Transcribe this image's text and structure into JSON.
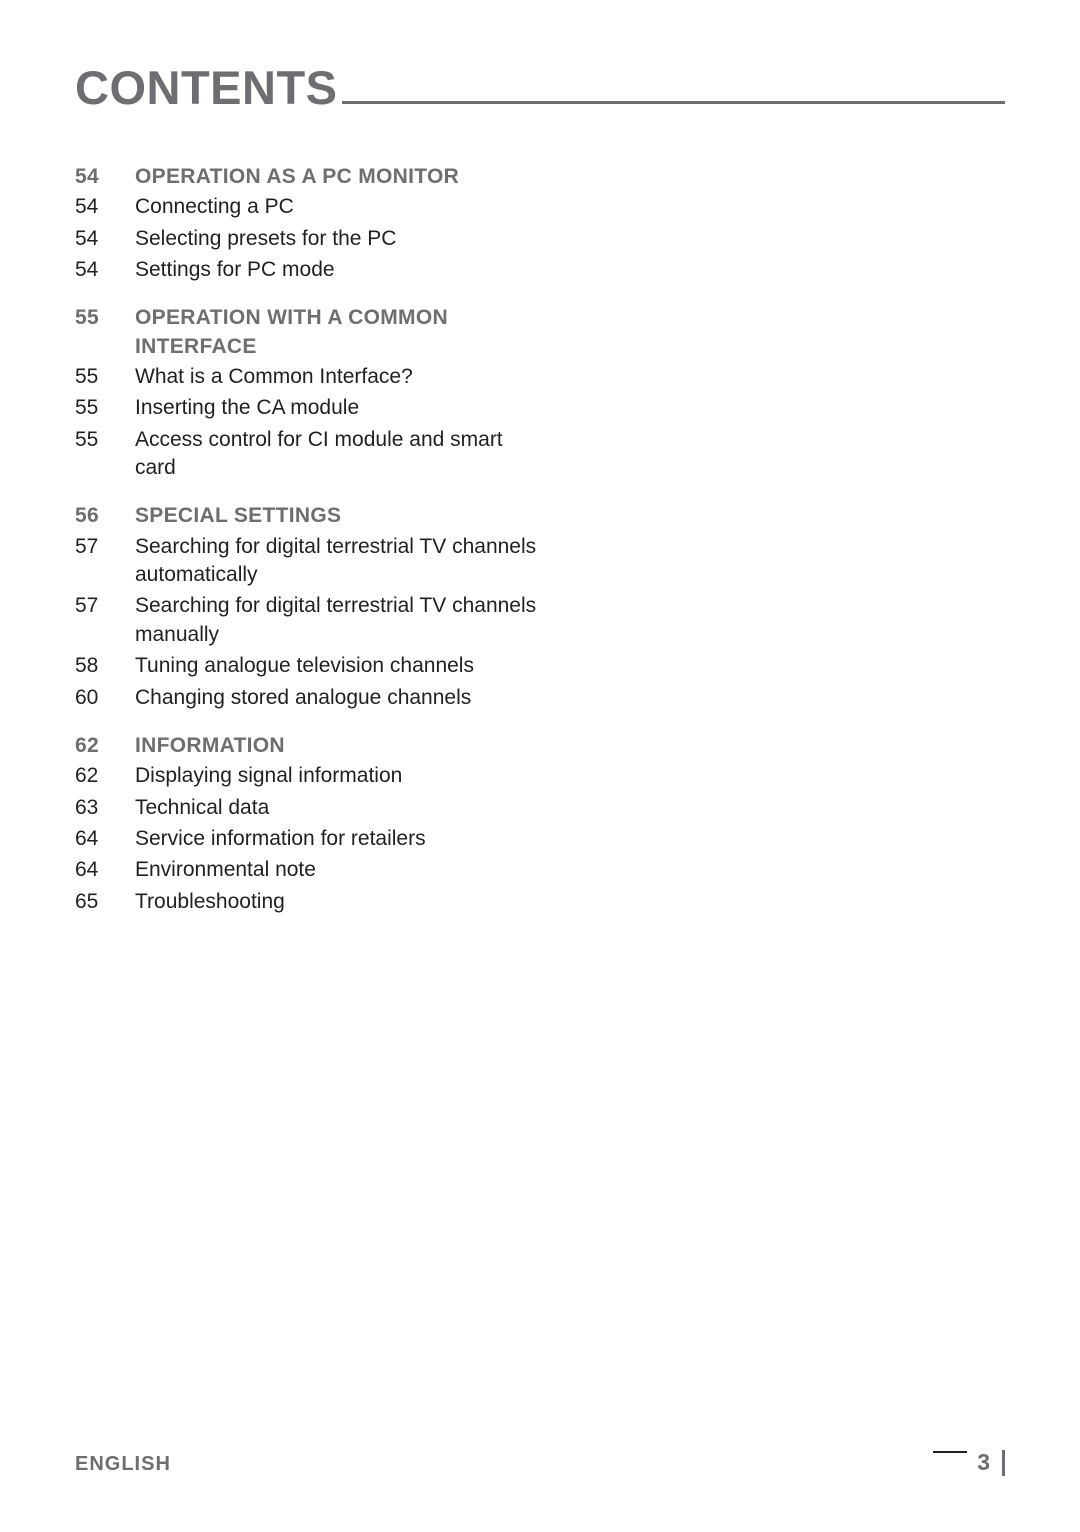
{
  "heading": "CONTENTS",
  "colors": {
    "heading": "#6d6e71",
    "section": "#6d6e71",
    "body": "#231f20",
    "rule": "#6d6e71",
    "background": "#ffffff"
  },
  "typography": {
    "heading_size_pt": 35,
    "body_size_pt": 16,
    "footer_size_pt": 15
  },
  "toc": {
    "sections": [
      {
        "page": "54",
        "title": "OPERATION AS A PC MONITOR",
        "items": [
          {
            "page": "54",
            "text": "Connecting a PC"
          },
          {
            "page": "54",
            "text": "Selecting presets for the PC"
          },
          {
            "page": "54",
            "text": "Settings for PC mode"
          }
        ]
      },
      {
        "page": "55",
        "title": "OPERATION WITH A COMMON INTERFACE",
        "items": [
          {
            "page": "55",
            "text": "What is a Common Interface?"
          },
          {
            "page": "55",
            "text": "Inserting the CA module"
          },
          {
            "page": "55",
            "text": "Access control for CI module and smart card"
          }
        ]
      },
      {
        "page": "56",
        "title": "SPECIAL SETTINGS",
        "items": [
          {
            "page": "57",
            "text": "Searching for digital terrestrial TV channels automatically"
          },
          {
            "page": "57",
            "text": "Searching for digital terrestrial TV channels manually"
          },
          {
            "page": "58",
            "text": "Tuning analogue television channels"
          },
          {
            "page": "60",
            "text": "Changing stored analogue channels"
          }
        ]
      },
      {
        "page": "62",
        "title": "INFORMATION",
        "items": [
          {
            "page": "62",
            "text": "Displaying signal information"
          },
          {
            "page": "63",
            "text": "Technical data"
          },
          {
            "page": "64",
            "text": "Service information for retailers"
          },
          {
            "page": "64",
            "text": "Environmental note"
          },
          {
            "page": "65",
            "text": "Troubleshooting"
          }
        ]
      }
    ]
  },
  "footer": {
    "language": "ENGLISH",
    "page_number": "3"
  }
}
